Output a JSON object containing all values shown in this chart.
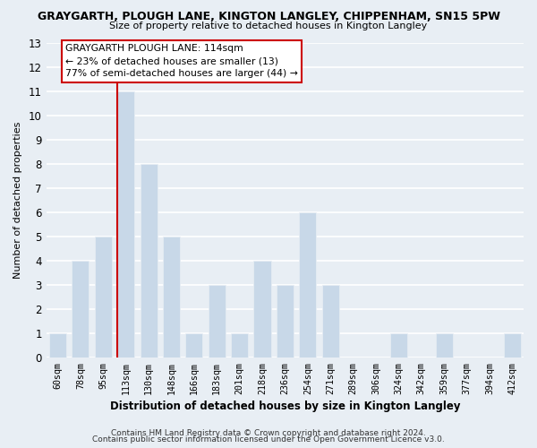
{
  "title": "GRAYGARTH, PLOUGH LANE, KINGTON LANGLEY, CHIPPENHAM, SN15 5PW",
  "subtitle": "Size of property relative to detached houses in Kington Langley",
  "xlabel": "Distribution of detached houses by size in Kington Langley",
  "ylabel": "Number of detached properties",
  "categories": [
    "60sqm",
    "78sqm",
    "95sqm",
    "113sqm",
    "130sqm",
    "148sqm",
    "166sqm",
    "183sqm",
    "201sqm",
    "218sqm",
    "236sqm",
    "254sqm",
    "271sqm",
    "289sqm",
    "306sqm",
    "324sqm",
    "342sqm",
    "359sqm",
    "377sqm",
    "394sqm",
    "412sqm"
  ],
  "values": [
    1,
    4,
    5,
    11,
    8,
    5,
    1,
    3,
    1,
    4,
    3,
    6,
    3,
    0,
    0,
    1,
    0,
    1,
    0,
    0,
    1
  ],
  "bar_color": "#c8d8e8",
  "vline_index": 3,
  "vline_color": "#cc0000",
  "annotation_title": "GRAYGARTH PLOUGH LANE: 114sqm",
  "annotation_line1": "← 23% of detached houses are smaller (13)",
  "annotation_line2": "77% of semi-detached houses are larger (44) →",
  "ylim": [
    0,
    13
  ],
  "yticks": [
    0,
    1,
    2,
    3,
    4,
    5,
    6,
    7,
    8,
    9,
    10,
    11,
    12,
    13
  ],
  "footer1": "Contains HM Land Registry data © Crown copyright and database right 2024.",
  "footer2": "Contains public sector information licensed under the Open Government Licence v3.0.",
  "background_color": "#e8eef4",
  "grid_color": "#ffffff",
  "bar_width": 0.75
}
